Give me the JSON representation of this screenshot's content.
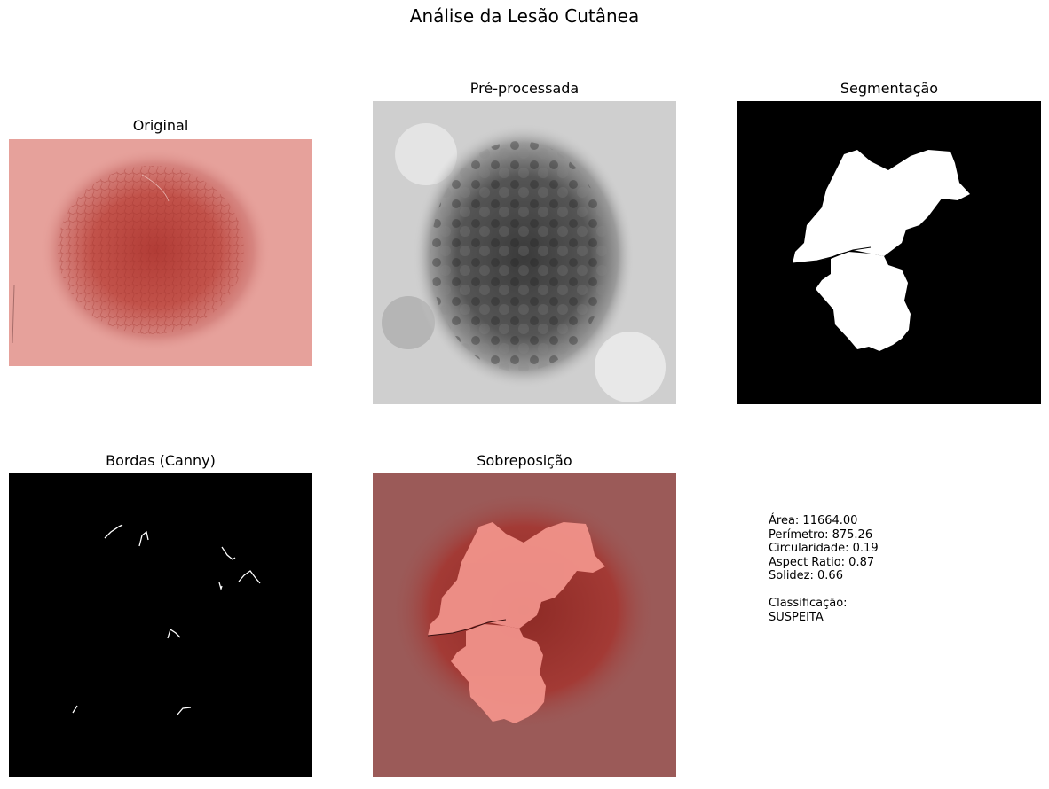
{
  "figure": {
    "title": "Análise da Lesão Cutânea"
  },
  "panels": [
    {
      "title": "Original"
    },
    {
      "title": "Pré-processada"
    },
    {
      "title": "Segmentação"
    },
    {
      "title": "Bordas (Canny)"
    },
    {
      "title": "Sobreposição"
    }
  ],
  "metrics": {
    "area": "Área: 11664.00",
    "perimeter": "Perímetro: 875.26",
    "circularity": "Circularidade: 0.19",
    "aspect_ratio": "Aspect Ratio: 0.87",
    "solidity": "Solidez: 0.66",
    "classification_label": "Classificação:",
    "classification_value": "SUSPEITA"
  },
  "colors": {
    "skin": "#e6a19b",
    "lesion": "#b8443a",
    "overlay_bg": "#9b5a58",
    "mask": "#ffffff",
    "background": "#000000"
  }
}
